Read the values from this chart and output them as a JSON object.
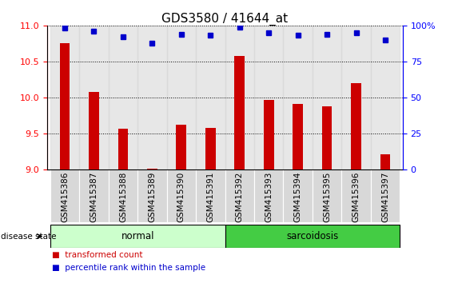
{
  "title": "GDS3580 / 41644_at",
  "samples": [
    "GSM415386",
    "GSM415387",
    "GSM415388",
    "GSM415389",
    "GSM415390",
    "GSM415391",
    "GSM415392",
    "GSM415393",
    "GSM415394",
    "GSM415395",
    "GSM415396",
    "GSM415397"
  ],
  "bar_values": [
    10.75,
    10.08,
    9.57,
    9.02,
    9.62,
    9.58,
    10.58,
    9.97,
    9.91,
    9.88,
    10.2,
    9.22
  ],
  "percentile_values": [
    98,
    96,
    92,
    88,
    94,
    93,
    99,
    95,
    93,
    94,
    95,
    90
  ],
  "bar_bottom": 9.0,
  "ylim_left": [
    9.0,
    11.0
  ],
  "ylim_right": [
    0,
    100
  ],
  "yticks_left": [
    9.0,
    9.5,
    10.0,
    10.5,
    11.0
  ],
  "yticks_right": [
    0,
    25,
    50,
    75,
    100
  ],
  "bar_color": "#cc0000",
  "dot_color": "#0000cc",
  "groups": [
    {
      "label": "normal",
      "start": 0,
      "end": 6,
      "color": "#ccffcc"
    },
    {
      "label": "sarcoidosis",
      "start": 6,
      "end": 12,
      "color": "#44cc44"
    }
  ],
  "group_row_label": "disease state",
  "tick_bg": "#d8d8d8",
  "legend_red_label": "transformed count",
  "legend_blue_label": "percentile rank within the sample",
  "title_fontsize": 11,
  "tick_fontsize": 7.5,
  "bar_width": 0.35
}
